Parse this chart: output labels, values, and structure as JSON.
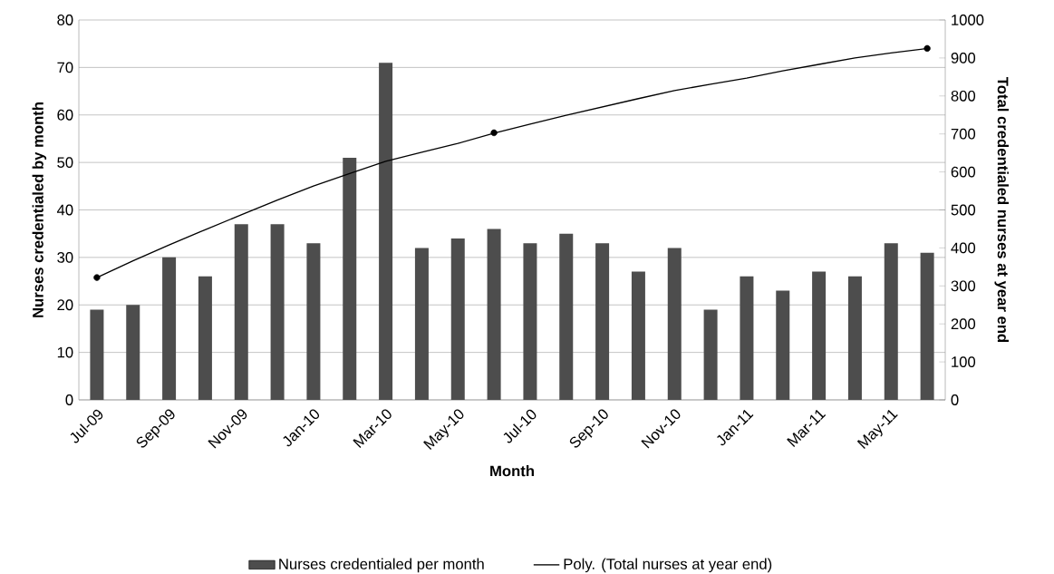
{
  "chart_data": {
    "type": "bar",
    "xlabel": "Month",
    "ylabel": "Nurses credentialed by month",
    "y2label": "Total credentialed nurses at year end",
    "categories": [
      "Jul-09",
      null,
      "Sep-09",
      null,
      "Nov-09",
      null,
      "Jan-10",
      null,
      "Mar-10",
      null,
      "May-10",
      null,
      "Jul-10",
      null,
      "Sep-10",
      null,
      "Nov-10",
      null,
      "Jan-11",
      null,
      "Mar-11",
      null,
      "May-11",
      null
    ],
    "series": [
      {
        "name": "Nurses credentialed per month",
        "color": "#4d4d4d",
        "values": [
          19,
          20,
          30,
          26,
          37,
          37,
          33,
          51,
          71,
          32,
          34,
          36,
          33,
          35,
          33,
          27,
          32,
          19,
          26,
          23,
          27,
          26,
          33,
          31
        ]
      },
      {
        "type": "line",
        "axis": "y2",
        "name": "Poly. (Total nurses at year end)",
        "color": "#000000",
        "marker": "none",
        "values": [
          322,
          366,
          408,
          448,
          487,
          526,
          563,
          596,
          628,
          652,
          675,
          702,
          726,
          749,
          771,
          793,
          814,
          831,
          847,
          866,
          883,
          900,
          913,
          925
        ]
      },
      {
        "type": "scatter",
        "axis": "y2",
        "color": "#000000",
        "marker": "circle",
        "values": [
          322,
          null,
          null,
          null,
          null,
          null,
          null,
          null,
          null,
          null,
          null,
          703,
          null,
          null,
          null,
          null,
          null,
          null,
          null,
          null,
          null,
          null,
          null,
          925
        ]
      }
    ],
    "ylim": [
      0,
      80
    ],
    "yticks": [
      0,
      10,
      20,
      30,
      40,
      50,
      60,
      70,
      80
    ],
    "y2lim": [
      0,
      1000
    ],
    "y2ticks": [
      0,
      100,
      200,
      300,
      400,
      500,
      600,
      700,
      800,
      900,
      1000
    ],
    "grid": "y",
    "legend": "bottom"
  }
}
